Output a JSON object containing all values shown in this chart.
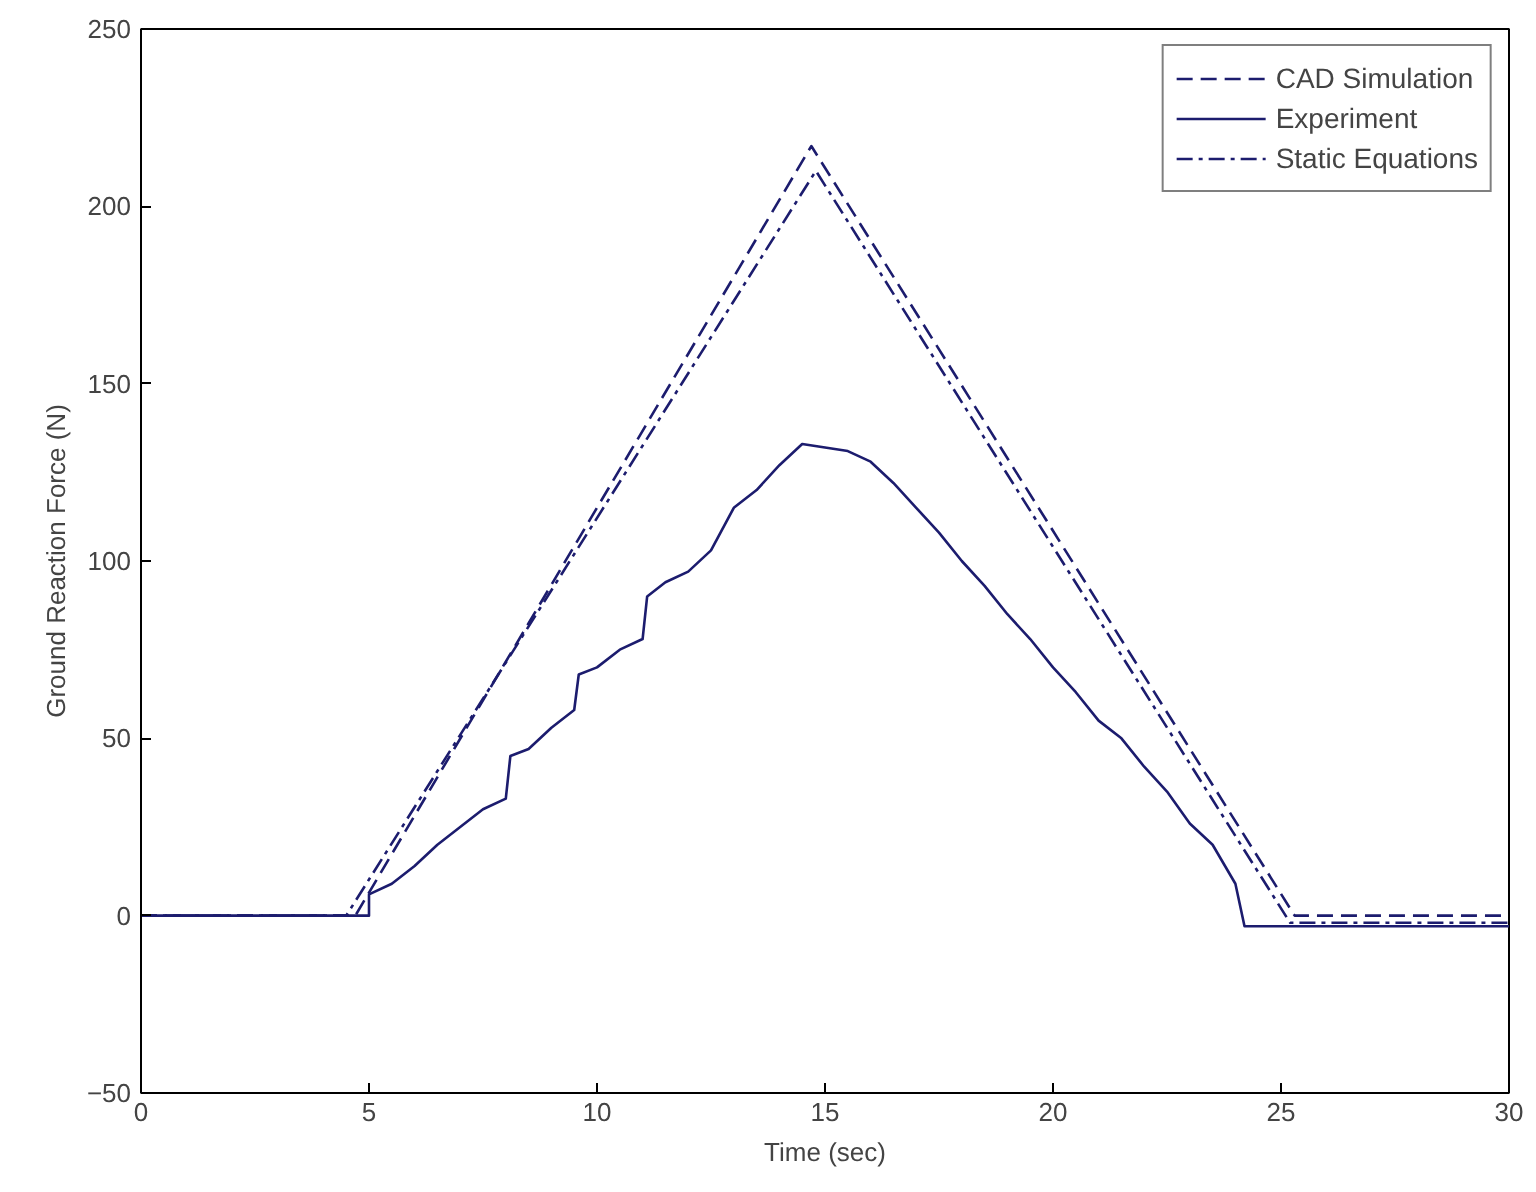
{
  "chart_data": {
    "type": "line",
    "xlabel": "Time (sec)",
    "ylabel": "Ground Reaction Force (N)",
    "xlim": [
      0,
      30
    ],
    "ylim": [
      -50,
      250
    ],
    "xticks": [
      0,
      5,
      10,
      15,
      20,
      25,
      30
    ],
    "yticks": [
      -50,
      0,
      50,
      100,
      150,
      200,
      250
    ],
    "grid": false,
    "legend": "top right",
    "marker": "none",
    "series": [
      {
        "name": "CAD Simulation",
        "color": "#1c1c6e",
        "line_style": "dashed",
        "x": [
          0,
          4.7,
          14.7,
          25.3,
          30
        ],
        "values": [
          0,
          0,
          217,
          0,
          0
        ]
      },
      {
        "name": "Experiment",
        "color": "#1c1c6e",
        "line_style": "solid",
        "x": [
          0,
          5,
          5,
          5.5,
          6,
          6.5,
          7,
          7.5,
          8,
          8.1,
          8.5,
          9,
          9.5,
          9.6,
          10,
          10.5,
          11,
          11.1,
          11.5,
          12,
          12.5,
          13,
          13.5,
          14,
          14.5,
          15,
          15.5,
          16,
          16.5,
          17,
          17.5,
          18,
          18.5,
          19,
          19.5,
          20,
          20.5,
          21,
          21.5,
          22,
          22.5,
          23,
          23.5,
          24,
          24.2,
          25,
          30
        ],
        "values": [
          0,
          0,
          6,
          9,
          14,
          20,
          25,
          30,
          33,
          45,
          47,
          53,
          58,
          68,
          70,
          75,
          78,
          90,
          94,
          97,
          103,
          115,
          120,
          127,
          133,
          132,
          131,
          128,
          122,
          115,
          108,
          100,
          93,
          85,
          78,
          70,
          63,
          55,
          50,
          42,
          35,
          26,
          20,
          9,
          -3,
          -3,
          -3
        ]
      },
      {
        "name": "Static Equations",
        "color": "#1c1c6e",
        "line_style": "dashdot",
        "x": [
          0,
          4.5,
          14.8,
          25.2,
          30
        ],
        "values": [
          0,
          0,
          210,
          -2,
          -2
        ]
      }
    ]
  }
}
